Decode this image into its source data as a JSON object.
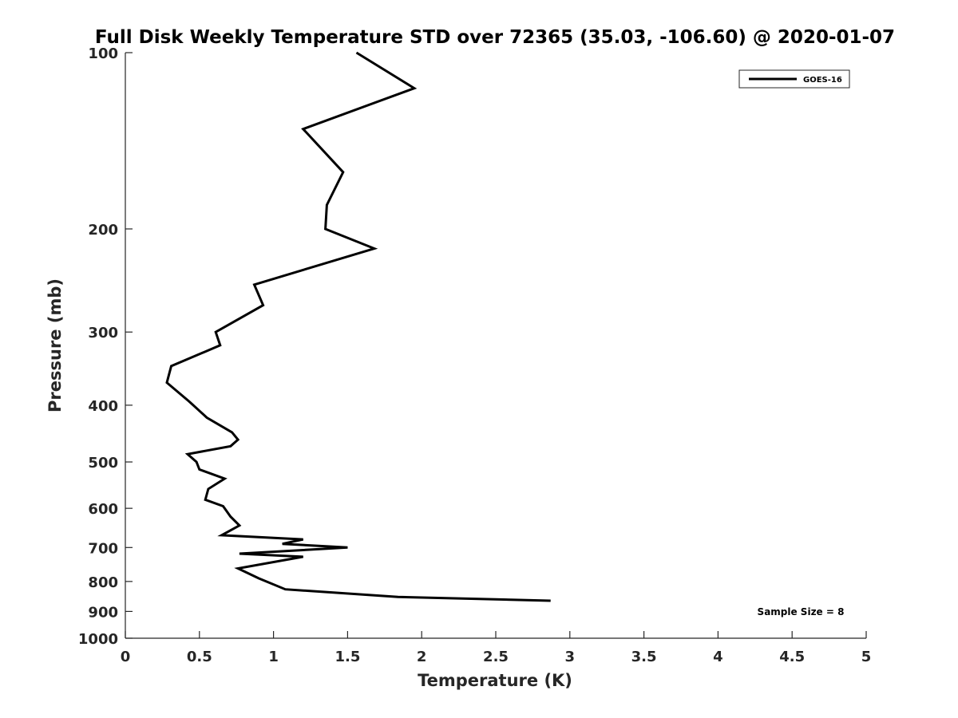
{
  "chart_data": {
    "type": "line",
    "title": "Full Disk Weekly Temperature STD over 72365 (35.03, -106.60) @ 2020-01-07",
    "xlabel": "Temperature (K)",
    "ylabel": "Pressure (mb)",
    "xlim": [
      0,
      5
    ],
    "ylim": [
      100,
      1000
    ],
    "yscale": "log",
    "y_reversed": true,
    "xticks": [
      "0",
      "0.5",
      "1",
      "1.5",
      "2",
      "2.5",
      "3",
      "3.5",
      "4",
      "4.5",
      "5"
    ],
    "yticks": [
      "100",
      "200",
      "300",
      "400",
      "500",
      "600",
      "700",
      "800",
      "900",
      "1000"
    ],
    "grid": false,
    "legend_position": "top-right",
    "annotation": "Sample Size = 8",
    "series": [
      {
        "name": "GOES-16",
        "color": "#000000",
        "points": [
          {
            "x": 1.56,
            "y": 100
          },
          {
            "x": 1.95,
            "y": 115
          },
          {
            "x": 1.2,
            "y": 135
          },
          {
            "x": 1.47,
            "y": 160
          },
          {
            "x": 1.36,
            "y": 182
          },
          {
            "x": 1.35,
            "y": 200
          },
          {
            "x": 1.68,
            "y": 216
          },
          {
            "x": 0.87,
            "y": 249
          },
          {
            "x": 0.93,
            "y": 270
          },
          {
            "x": 0.61,
            "y": 300
          },
          {
            "x": 0.64,
            "y": 316
          },
          {
            "x": 0.31,
            "y": 343
          },
          {
            "x": 0.28,
            "y": 366
          },
          {
            "x": 0.43,
            "y": 394
          },
          {
            "x": 0.55,
            "y": 420
          },
          {
            "x": 0.72,
            "y": 445
          },
          {
            "x": 0.76,
            "y": 458
          },
          {
            "x": 0.71,
            "y": 470
          },
          {
            "x": 0.42,
            "y": 485
          },
          {
            "x": 0.48,
            "y": 500
          },
          {
            "x": 0.5,
            "y": 515
          },
          {
            "x": 0.67,
            "y": 534
          },
          {
            "x": 0.56,
            "y": 556
          },
          {
            "x": 0.54,
            "y": 580
          },
          {
            "x": 0.66,
            "y": 595
          },
          {
            "x": 0.71,
            "y": 620
          },
          {
            "x": 0.77,
            "y": 642
          },
          {
            "x": 0.65,
            "y": 667
          },
          {
            "x": 1.2,
            "y": 678
          },
          {
            "x": 1.06,
            "y": 690
          },
          {
            "x": 1.5,
            "y": 700
          },
          {
            "x": 0.77,
            "y": 717
          },
          {
            "x": 1.2,
            "y": 726
          },
          {
            "x": 0.76,
            "y": 760
          },
          {
            "x": 0.9,
            "y": 790
          },
          {
            "x": 1.08,
            "y": 825
          },
          {
            "x": 1.84,
            "y": 850
          },
          {
            "x": 2.87,
            "y": 863
          }
        ]
      }
    ]
  }
}
